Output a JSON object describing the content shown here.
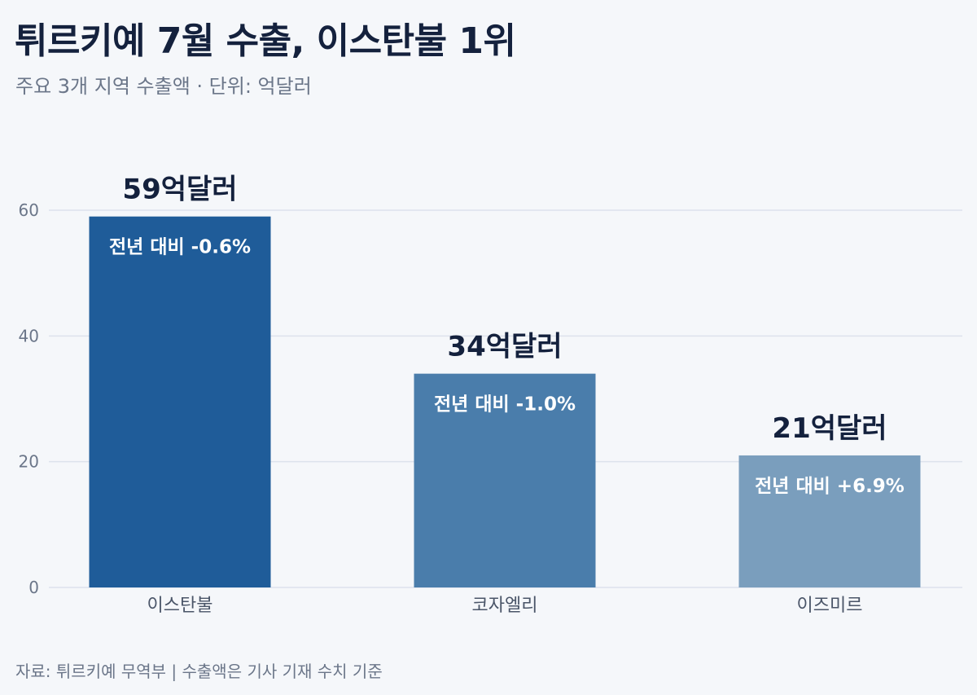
{
  "header": {
    "title": "튀르키예 7월 수출, 이스탄불 1위",
    "subtitle": "주요 3개 지역 수출액 · 단위: 억달러"
  },
  "footer": {
    "source": "자료: 튀르키예 무역부 | 수출액은 기사 기재 수치 기준"
  },
  "colors": {
    "bars": [
      "#1f5c99",
      "#4a7dab",
      "#7a9ebd"
    ],
    "grid": "#dde2ec",
    "background": "#f5f7fa"
  },
  "chart_data": {
    "type": "bar",
    "title": "튀르키예 7월 수출, 이스탄불 1위",
    "subtitle": "주요 3개 지역 수출액 · 단위: 억달러",
    "categories": [
      "이스탄불",
      "코자엘리",
      "이즈미르"
    ],
    "values": [
      59,
      34,
      21
    ],
    "value_labels": [
      "59억달러",
      "34억달러",
      "21억달러"
    ],
    "change_labels": [
      "전년 대비 -0.6%",
      "전년 대비 -1.0%",
      "전년 대비 +6.9%"
    ],
    "yticks": [
      0,
      20,
      40,
      60
    ],
    "ylim": [
      0,
      60
    ],
    "grid": true,
    "xlabel": "",
    "ylabel": ""
  }
}
